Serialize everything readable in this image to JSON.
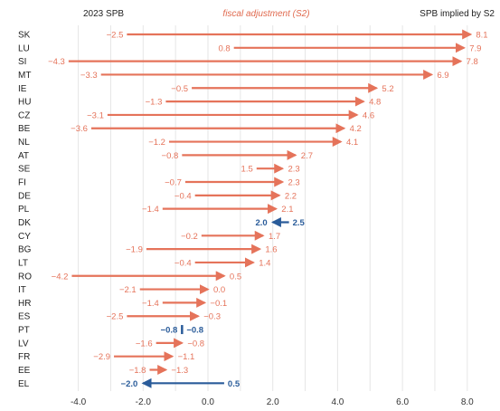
{
  "header": {
    "left_label": "2023 SPB",
    "center_label": "fiscal adjustment (S2)",
    "right_label": "SPB implied by S2"
  },
  "colors": {
    "increase": "#e5735a",
    "decrease": "#2a5c9a",
    "grid": "#e6e6e6",
    "text": "#333333"
  },
  "chart_data": {
    "type": "arrow-dumbbell",
    "title": "",
    "xlabel": "",
    "ylabel": "",
    "xlim": [
      -4.5,
      8.5
    ],
    "xticks": [
      "-4.0",
      "-2.0",
      "0.0",
      "2.0",
      "4.0",
      "6.0",
      "8.0"
    ],
    "xtick_values": [
      -4,
      -2,
      0,
      2,
      4,
      6,
      8
    ],
    "grid": true,
    "rows": [
      {
        "country": "SK",
        "spb2023": -2.5,
        "implied": 8.1,
        "start_label": "−2.5",
        "end_label": "8.1"
      },
      {
        "country": "LU",
        "spb2023": 0.8,
        "implied": 7.9,
        "start_label": "0.8",
        "end_label": "7.9"
      },
      {
        "country": "SI",
        "spb2023": -4.3,
        "implied": 7.8,
        "start_label": "−4.3",
        "end_label": "7.8"
      },
      {
        "country": "MT",
        "spb2023": -3.3,
        "implied": 6.9,
        "start_label": "−3.3",
        "end_label": "6.9"
      },
      {
        "country": "IE",
        "spb2023": -0.5,
        "implied": 5.2,
        "start_label": "−0.5",
        "end_label": "5.2"
      },
      {
        "country": "HU",
        "spb2023": -1.3,
        "implied": 4.8,
        "start_label": "−1.3",
        "end_label": "4.8"
      },
      {
        "country": "CZ",
        "spb2023": -3.1,
        "implied": 4.6,
        "start_label": "−3.1",
        "end_label": "4.6"
      },
      {
        "country": "BE",
        "spb2023": -3.6,
        "implied": 4.2,
        "start_label": "−3.6",
        "end_label": "4.2"
      },
      {
        "country": "NL",
        "spb2023": -1.2,
        "implied": 4.1,
        "start_label": "−1.2",
        "end_label": "4.1"
      },
      {
        "country": "AT",
        "spb2023": -0.8,
        "implied": 2.7,
        "start_label": "−0.8",
        "end_label": "2.7"
      },
      {
        "country": "SE",
        "spb2023": 1.5,
        "implied": 2.3,
        "start_label": "1.5",
        "end_label": "2.3"
      },
      {
        "country": "FI",
        "spb2023": -0.7,
        "implied": 2.3,
        "start_label": "−0.7",
        "end_label": "2.3"
      },
      {
        "country": "DE",
        "spb2023": -0.4,
        "implied": 2.2,
        "start_label": "−0.4",
        "end_label": "2.2"
      },
      {
        "country": "PL",
        "spb2023": -1.4,
        "implied": 2.1,
        "start_label": "−1.4",
        "end_label": "2.1"
      },
      {
        "country": "DK",
        "spb2023": 2.5,
        "implied": 2.0,
        "start_label": "2.5",
        "end_label": "2.0"
      },
      {
        "country": "CY",
        "spb2023": -0.2,
        "implied": 1.7,
        "start_label": "−0.2",
        "end_label": "1.7"
      },
      {
        "country": "BG",
        "spb2023": -1.9,
        "implied": 1.6,
        "start_label": "−1.9",
        "end_label": "1.6"
      },
      {
        "country": "LT",
        "spb2023": -0.4,
        "implied": 1.4,
        "start_label": "−0.4",
        "end_label": "1.4"
      },
      {
        "country": "RO",
        "spb2023": -4.2,
        "implied": 0.5,
        "start_label": "−4.2",
        "end_label": "0.5"
      },
      {
        "country": "IT",
        "spb2023": -2.1,
        "implied": 0.0,
        "start_label": "−2.1",
        "end_label": "0.0"
      },
      {
        "country": "HR",
        "spb2023": -1.4,
        "implied": -0.1,
        "start_label": "−1.4",
        "end_label": "−0.1"
      },
      {
        "country": "ES",
        "spb2023": -2.5,
        "implied": -0.3,
        "start_label": "−2.5",
        "end_label": "−0.3"
      },
      {
        "country": "PT",
        "spb2023": -0.8,
        "implied": -0.8,
        "start_label": "−0.8",
        "end_label": "−0.8"
      },
      {
        "country": "LV",
        "spb2023": -1.6,
        "implied": -0.8,
        "start_label": "−1.6",
        "end_label": "−0.8"
      },
      {
        "country": "FR",
        "spb2023": -2.9,
        "implied": -1.1,
        "start_label": "−2.9",
        "end_label": "−1.1"
      },
      {
        "country": "EE",
        "spb2023": -1.8,
        "implied": -1.3,
        "start_label": "−1.8",
        "end_label": "−1.3"
      },
      {
        "country": "EL",
        "spb2023": 0.5,
        "implied": -2.0,
        "start_label": "0.5",
        "end_label": "−2.0"
      }
    ]
  }
}
